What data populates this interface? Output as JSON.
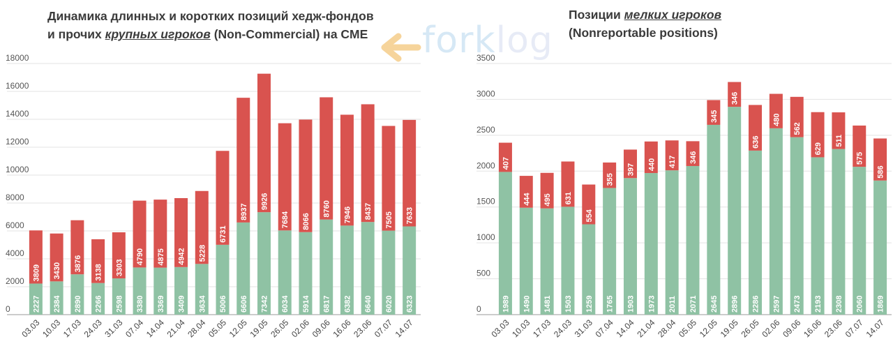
{
  "logo": {
    "text_a": "fork",
    "text_b": "log"
  },
  "colors": {
    "short": "#d9534f",
    "long": "#8fc2a4",
    "grid": "#e3e3e3",
    "axis": "#666666",
    "label": "#ffffff"
  },
  "chart_data": [
    {
      "type": "bar",
      "stacked": true,
      "title_lines": [
        "Динамика длинных и коротких позиций хедж-фондов",
        "и прочих ",
        "крупных игроков",
        " (Non-Commercial) на CME"
      ],
      "categories": [
        "03.03",
        "10.03",
        "17.03",
        "24.03",
        "31.03",
        "07.04",
        "14.04",
        "21.04",
        "28.04",
        "05.05",
        "12.05",
        "19.05",
        "26.05",
        "02.06",
        "09.06",
        "16.06",
        "23.06",
        "07.07",
        "14.07"
      ],
      "series": [
        {
          "values": [
            2227,
            2384,
            2890,
            2266,
            2598,
            3380,
            3369,
            3409,
            3634,
            5006,
            6606,
            7342,
            6034,
            5914,
            6817,
            6382,
            6640,
            6020,
            6323
          ]
        },
        {
          "values": [
            3809,
            3430,
            3876,
            3138,
            3303,
            4790,
            4875,
            4942,
            5228,
            6731,
            8937,
            9926,
            7684,
            8066,
            8760,
            7946,
            8437,
            7505,
            7633
          ]
        }
      ],
      "ylim": [
        0,
        18000
      ],
      "yticks": [
        0,
        2000,
        4000,
        6000,
        8000,
        10000,
        12000,
        14000,
        16000,
        18000
      ],
      "grid": true
    },
    {
      "type": "bar",
      "stacked": true,
      "title_lines": [
        "Позиции ",
        "мелких игроков",
        "(Nonreportable positions)"
      ],
      "categories": [
        "03.03",
        "10.03",
        "17.03",
        "24.03",
        "31.03",
        "07.04",
        "14.04",
        "21.04",
        "28.04",
        "05.05",
        "12.05",
        "19.05",
        "26.05",
        "02.06",
        "09.06",
        "16.06",
        "23.06",
        "07.07",
        "14.07"
      ],
      "series": [
        {
          "values": [
            1989,
            1490,
            1481,
            1503,
            1259,
            1765,
            1903,
            1973,
            2011,
            2071,
            2645,
            2896,
            2286,
            2597,
            2473,
            2193,
            2308,
            2060,
            1869
          ]
        },
        {
          "values": [
            407,
            444,
            495,
            631,
            554,
            355,
            397,
            440,
            417,
            346,
            345,
            346,
            636,
            480,
            562,
            629,
            511,
            575,
            586
          ]
        }
      ],
      "ylim": [
        0,
        3500
      ],
      "yticks": [
        0,
        500,
        1000,
        1500,
        2000,
        2500,
        3000,
        3500
      ],
      "grid": true
    }
  ]
}
